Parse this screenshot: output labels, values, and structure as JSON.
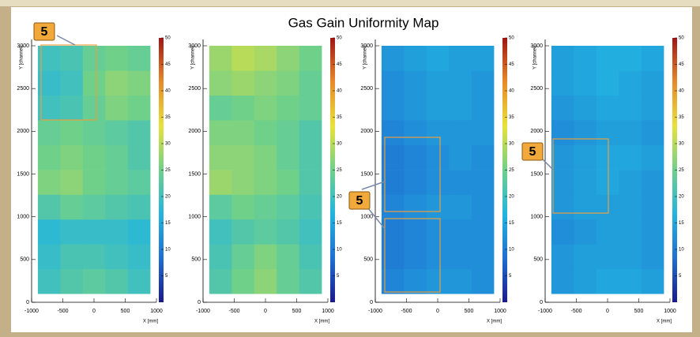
{
  "title": "Gas Gain Uniformity Map",
  "annotations": [
    {
      "label": "5"
    },
    {
      "label": "5"
    },
    {
      "label": "5"
    }
  ],
  "chart_data": [
    {
      "type": "heatmap",
      "xlabel": "X [mm]",
      "ylabel": "Y [channel]",
      "xlim": [
        -1000,
        1000
      ],
      "xticks": [
        -1000,
        -500,
        0,
        500,
        1000
      ],
      "ylim": [
        0,
        3000
      ],
      "yticks": [
        0,
        500,
        1000,
        1500,
        2000,
        2500,
        3000
      ],
      "zlim": [
        0,
        50
      ],
      "zticks": [
        5,
        10,
        15,
        20,
        25,
        30,
        35,
        40,
        45,
        50
      ],
      "colorscale": [
        "#1a1a8c",
        "#1f6fd1",
        "#22b5e0",
        "#6fd08a",
        "#e8e23a",
        "#e88a2a",
        "#a01515"
      ],
      "x_bins": [
        -900,
        -540,
        -180,
        180,
        540,
        900
      ],
      "y_bins": [
        100,
        390,
        680,
        970,
        1260,
        1550,
        1840,
        2130,
        2420,
        2710,
        3000
      ],
      "z": [
        [
          20,
          22,
          23,
          22,
          20
        ],
        [
          19,
          21,
          21,
          20,
          19
        ],
        [
          18,
          19,
          19,
          19,
          18
        ],
        [
          22,
          24,
          23,
          22,
          21
        ],
        [
          26,
          27,
          25,
          24,
          23
        ],
        [
          25,
          26,
          25,
          24,
          22
        ],
        [
          24,
          25,
          24,
          23,
          22
        ],
        [
          20,
          21,
          24,
          26,
          25
        ],
        [
          19,
          20,
          25,
          27,
          26
        ],
        [
          20,
          21,
          24,
          25,
          24
        ]
      ]
    },
    {
      "type": "heatmap",
      "xlabel": "X [mm]",
      "ylabel": "Y [channel]",
      "xlim": [
        -1000,
        1000
      ],
      "xticks": [
        -1000,
        -500,
        0,
        500,
        1000
      ],
      "ylim": [
        0,
        3000
      ],
      "yticks": [
        0,
        500,
        1000,
        1500,
        2000,
        2500,
        3000
      ],
      "zlim": [
        0,
        50
      ],
      "zticks": [
        5,
        10,
        15,
        20,
        25,
        30,
        35,
        40,
        45,
        50
      ],
      "colorscale": [
        "#1a1a8c",
        "#1f6fd1",
        "#22b5e0",
        "#6fd08a",
        "#e8e23a",
        "#e88a2a",
        "#a01515"
      ],
      "x_bins": [
        -900,
        -540,
        -180,
        180,
        540,
        900
      ],
      "y_bins": [
        100,
        390,
        680,
        970,
        1260,
        1550,
        1840,
        2130,
        2420,
        2710,
        3000
      ],
      "z": [
        [
          22,
          25,
          27,
          24,
          22
        ],
        [
          21,
          24,
          26,
          24,
          21
        ],
        [
          20,
          22,
          23,
          22,
          20
        ],
        [
          23,
          25,
          24,
          23,
          21
        ],
        [
          28,
          27,
          26,
          25,
          22
        ],
        [
          27,
          27,
          26,
          24,
          22
        ],
        [
          26,
          26,
          25,
          24,
          22
        ],
        [
          24,
          25,
          26,
          25,
          24
        ],
        [
          27,
          28,
          27,
          26,
          24
        ],
        [
          28,
          30,
          29,
          27,
          25
        ]
      ]
    },
    {
      "type": "heatmap",
      "xlabel": "X [mm]",
      "ylabel": "Y [channel]",
      "xlim": [
        -1000,
        1000
      ],
      "xticks": [
        -1000,
        -500,
        0,
        500,
        1000
      ],
      "ylim": [
        0,
        3000
      ],
      "yticks": [
        0,
        500,
        1000,
        1500,
        2000,
        2500,
        3000
      ],
      "zlim": [
        0,
        50
      ],
      "zticks": [
        5,
        10,
        15,
        20,
        25,
        30,
        35,
        40,
        45,
        50
      ],
      "colorscale": [
        "#1a1a8c",
        "#1f6fd1",
        "#22b5e0",
        "#6fd08a",
        "#e8e23a",
        "#e88a2a",
        "#a01515"
      ],
      "x_bins": [
        -900,
        -540,
        -180,
        180,
        540,
        900
      ],
      "y_bins": [
        100,
        390,
        680,
        970,
        1260,
        1550,
        1840,
        2130,
        2420,
        2710,
        3000
      ],
      "z": [
        [
          11,
          12,
          13,
          13,
          12
        ],
        [
          10,
          11,
          12,
          12,
          12
        ],
        [
          10,
          11,
          12,
          12,
          12
        ],
        [
          11,
          12,
          13,
          13,
          12
        ],
        [
          10,
          11,
          12,
          12,
          12
        ],
        [
          10,
          11,
          12,
          13,
          12
        ],
        [
          11,
          12,
          13,
          13,
          13
        ],
        [
          12,
          13,
          14,
          14,
          13
        ],
        [
          12,
          13,
          14,
          14,
          13
        ],
        [
          13,
          14,
          15,
          14,
          14
        ]
      ]
    },
    {
      "type": "heatmap",
      "xlabel": "X [mm]",
      "ylabel": "Y [channel]",
      "xlim": [
        -1000,
        1000
      ],
      "xticks": [
        -1000,
        -500,
        0,
        500,
        1000
      ],
      "ylim": [
        0,
        3000
      ],
      "yticks": [
        0,
        500,
        1000,
        1500,
        2000,
        2500,
        3000
      ],
      "zlim": [
        0,
        50
      ],
      "zticks": [
        5,
        10,
        15,
        20,
        25,
        30,
        35,
        40,
        45,
        50
      ],
      "colorscale": [
        "#1a1a8c",
        "#1f6fd1",
        "#22b5e0",
        "#6fd08a",
        "#e8e23a",
        "#e88a2a",
        "#a01515"
      ],
      "x_bins": [
        -900,
        -540,
        -180,
        180,
        540,
        900
      ],
      "y_bins": [
        100,
        390,
        680,
        970,
        1260,
        1550,
        1840,
        2130,
        2420,
        2710,
        3000
      ],
      "z": [
        [
          13,
          14,
          15,
          15,
          14
        ],
        [
          13,
          14,
          14,
          14,
          13
        ],
        [
          12,
          13,
          14,
          14,
          13
        ],
        [
          13,
          14,
          14,
          14,
          13
        ],
        [
          13,
          14,
          15,
          14,
          13
        ],
        [
          13,
          14,
          15,
          15,
          14
        ],
        [
          12,
          13,
          14,
          14,
          13
        ],
        [
          13,
          14,
          15,
          15,
          14
        ],
        [
          14,
          15,
          16,
          15,
          14
        ],
        [
          14,
          15,
          16,
          16,
          15
        ]
      ]
    }
  ]
}
